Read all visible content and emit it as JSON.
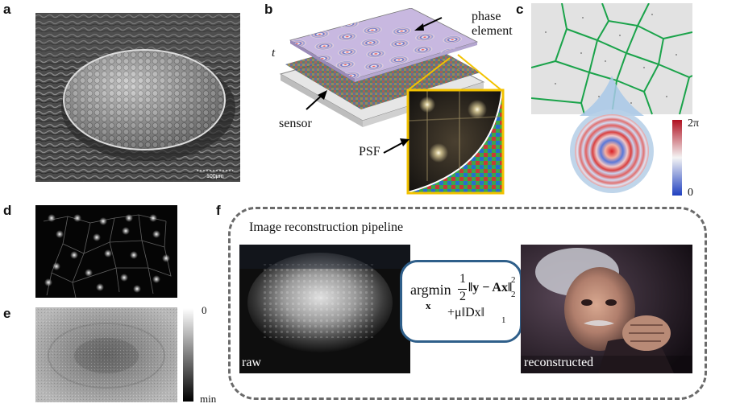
{
  "panels": {
    "a": {
      "label": "a",
      "scale_text": "100μm"
    },
    "b": {
      "label": "b",
      "phase_label": "phase",
      "element_label": "element",
      "t_label": "t",
      "sensor_label": "sensor",
      "psf_label": "PSF"
    },
    "c": {
      "label": "c",
      "colorbar_max": "2π",
      "colorbar_min": "0"
    },
    "d": {
      "label": "d"
    },
    "e": {
      "label": "e",
      "colorbar_max": "0",
      "colorbar_min": "min"
    },
    "f": {
      "label": "f",
      "title": "Image reconstruction pipeline",
      "raw_label": "raw",
      "reconstructed_label": "reconstructed",
      "equation": {
        "argmin": "argmin",
        "var": "x",
        "frac_num": "1",
        "frac_den": "2",
        "term1": "‖y − Ax‖",
        "sub1": "2",
        "sup1": "2",
        "term2": "+μ‖Dx‖",
        "sub2": "1"
      }
    }
  },
  "colors": {
    "highlight": "#f2c200",
    "voronoi": "#1aa34a",
    "border": "#6b6b6b",
    "eq_border": "#2f5f8a"
  }
}
